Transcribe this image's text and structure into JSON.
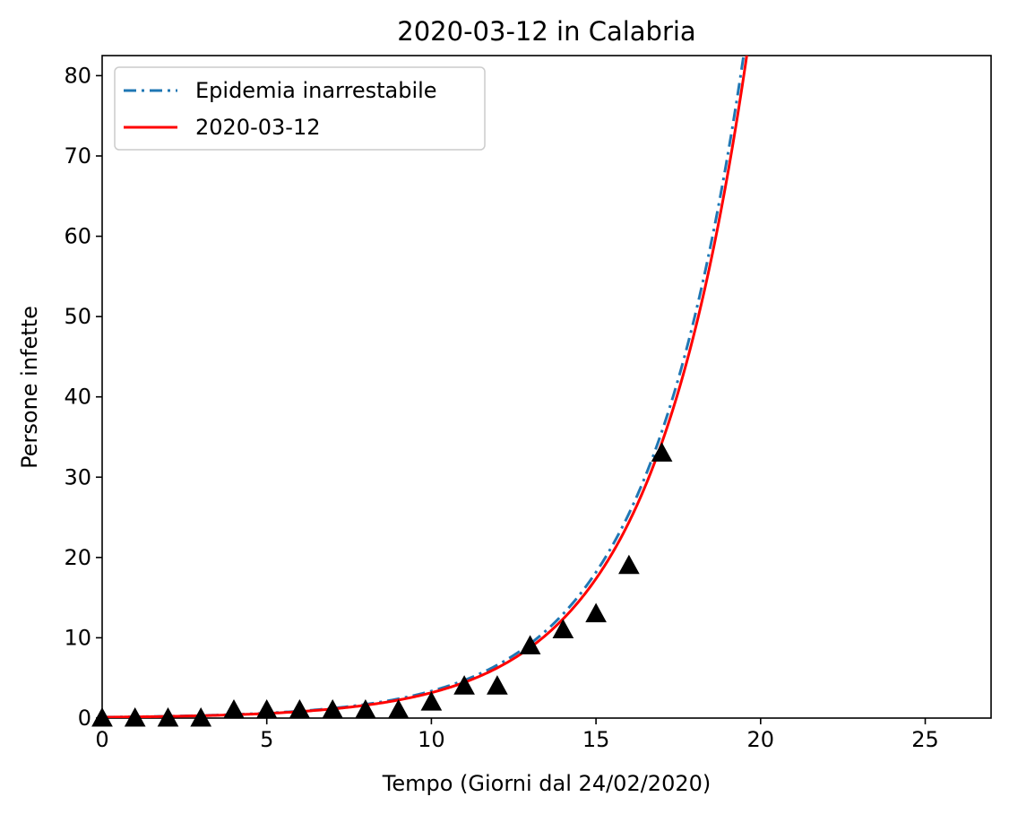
{
  "chart_data": {
    "type": "line",
    "title": "2020-03-12 in Calabria",
    "xlabel": "Tempo (Giorni dal 24/02/2020)",
    "ylabel": "Persone infette",
    "xlim": [
      0,
      27
    ],
    "ylim": [
      0,
      82.5
    ],
    "xticks": [
      0,
      5,
      10,
      15,
      20,
      25
    ],
    "yticks": [
      0,
      10,
      20,
      30,
      40,
      50,
      60,
      70,
      80
    ],
    "grid": false,
    "legend_position": "top-left",
    "series": [
      {
        "name": "Epidemia inarrestabile",
        "style": "dashdot",
        "color": "#1f77b4",
        "model": {
          "form": "a*exp(b*x)",
          "a": 0.115,
          "b": 0.3375
        }
      },
      {
        "name": "2020-03-12",
        "style": "solid",
        "color": "#ff0000",
        "model": {
          "form": "a*exp(b*x)",
          "a": 0.105,
          "b": 0.3405
        }
      },
      {
        "style": "markers",
        "marker": "triangle",
        "color": "#000000",
        "x": [
          0,
          1,
          2,
          3,
          4,
          5,
          6,
          7,
          8,
          9,
          10,
          11,
          12,
          13,
          14,
          15,
          16,
          17
        ],
        "y": [
          0,
          0,
          0,
          0,
          1,
          1,
          1,
          1,
          1,
          1,
          2,
          4,
          4,
          9,
          11,
          13,
          19,
          33
        ]
      }
    ]
  }
}
